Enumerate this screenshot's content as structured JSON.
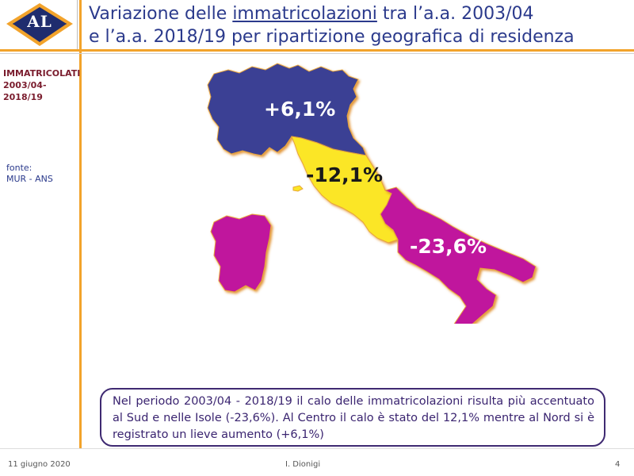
{
  "colors": {
    "accent": "#f2a32b",
    "title": "#2b3a8c",
    "nord": "#3b3f94",
    "centro": "#fbe625",
    "sud_isole": "#c0169d",
    "note_border": "#3f2a72"
  },
  "logo": {
    "text": "AL"
  },
  "title": {
    "line1_before": "Variazione delle ",
    "line1_underlined": "immatricolazioni",
    "line1_after": " tra l’a.a. 2003/04",
    "line2": "e l’a.a. 2018/19 per ripartizione geografica di residenza"
  },
  "sidebar": {
    "label_line1": "IMMATRICOLATI",
    "label_line2": "2003/04-",
    "label_line3": "2018/19",
    "source_label": "fonte:",
    "source_value": "MUR - ANS"
  },
  "map": {
    "regions": [
      {
        "name": "Nord",
        "change": "+6,1%"
      },
      {
        "name": "Centro",
        "change": "-12,1%"
      },
      {
        "name": "Sud e Isole",
        "change": "-23,6%"
      }
    ]
  },
  "note": {
    "text": "Nel periodo 2003/04 - 2018/19 il calo delle immatricolazioni risulta più accentuato al Sud e nelle Isole (-23,6%). Al Centro il calo è stato del 12,1% mentre al Nord si è registrato un lieve aumento (+6,1%)"
  },
  "footer": {
    "date": "11 giugno 2020",
    "author": "I. Dionigi",
    "page": "4"
  }
}
